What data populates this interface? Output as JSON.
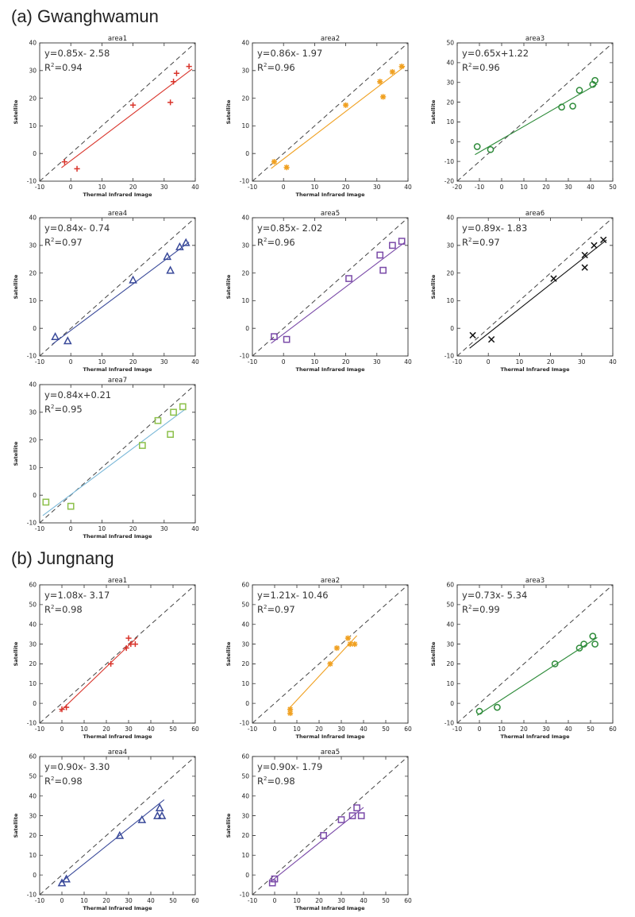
{
  "sections": [
    {
      "title": "(a) Gwanghwamun"
    },
    {
      "title": "(b) Jungnang"
    }
  ],
  "chart_data": [
    {
      "type": "scatter",
      "title": "area1",
      "xlabel": "Thermal Infrared Image",
      "ylabel": "Satellite",
      "xlim": [
        -10,
        40
      ],
      "ylim": [
        -10,
        40
      ],
      "xticks": [
        -10,
        0,
        10,
        20,
        30,
        40
      ],
      "yticks": [
        -10,
        0,
        10,
        20,
        30,
        40
      ],
      "tick_labels": {
        "x": [
          "-10",
          "0",
          "10",
          "20",
          "30",
          "40"
        ],
        "y": [
          "-10",
          "0",
          "10",
          "20",
          "30",
          "40"
        ]
      },
      "equation": "y=0.85x- 2.58",
      "r2_label": "R",
      "r2_value": "=0.94",
      "marker": "plus",
      "color": "#d9342b",
      "points": [
        [
          -2,
          -3
        ],
        [
          2,
          -5.5
        ],
        [
          20,
          17.5
        ],
        [
          32,
          18.5
        ],
        [
          33,
          26
        ],
        [
          34,
          29
        ],
        [
          38,
          31.5
        ]
      ],
      "fit": {
        "slope": 0.85,
        "intercept": -2.58
      }
    },
    {
      "type": "scatter",
      "title": "area2",
      "xlabel": "Thermal Infrared Image",
      "ylabel": "Satellite",
      "xlim": [
        -10,
        40
      ],
      "ylim": [
        -10,
        40
      ],
      "xticks": [
        -10,
        0,
        10,
        20,
        30,
        40
      ],
      "yticks": [
        -10,
        0,
        10,
        20,
        30,
        40
      ],
      "tick_labels": {
        "x": [
          "-10",
          "0",
          "10",
          "20",
          "30",
          "40"
        ],
        "y": [
          "-10",
          "0",
          "10",
          "20",
          "30",
          "40"
        ]
      },
      "equation": "y=0.86x- 1.97",
      "r2_label": "R",
      "r2_value": "=0.96",
      "marker": "asterisk",
      "color": "#f0a020",
      "points": [
        [
          -3,
          -3
        ],
        [
          1,
          -5
        ],
        [
          20,
          17.5
        ],
        [
          31,
          26
        ],
        [
          32,
          20.5
        ],
        [
          35,
          29.5
        ],
        [
          38,
          31.5
        ]
      ],
      "fit": {
        "slope": 0.86,
        "intercept": -1.97
      }
    },
    {
      "type": "scatter",
      "title": "area3",
      "xlabel": "",
      "ylabel": "Satellite",
      "xlim": [
        -20,
        50
      ],
      "ylim": [
        -20,
        50
      ],
      "xticks": [
        -20,
        -10,
        0,
        10,
        20,
        30,
        40,
        50
      ],
      "yticks": [
        -20,
        -10,
        0,
        10,
        20,
        30,
        40,
        50
      ],
      "tick_labels": {
        "x": [
          "-20",
          "-10",
          "0",
          "10",
          "20",
          "30",
          "40",
          "50"
        ],
        "y": [
          "-20",
          "-10",
          "0",
          "10",
          "20",
          "30",
          "40",
          "50"
        ]
      },
      "equation": "y=0.65x+1.22",
      "r2_label": "R",
      "r2_value": "=0.96",
      "marker": "circle",
      "color": "#2e8b3a",
      "points": [
        [
          -11,
          -2.5
        ],
        [
          -5,
          -4
        ],
        [
          27,
          17.5
        ],
        [
          32,
          18
        ],
        [
          35,
          26
        ],
        [
          41,
          29
        ],
        [
          42,
          31
        ]
      ],
      "fit": {
        "slope": 0.65,
        "intercept": 1.22
      }
    },
    {
      "type": "scatter",
      "title": "area4",
      "xlabel": "Thermal Infrared Image",
      "ylabel": "Satellite",
      "xlim": [
        -10,
        40
      ],
      "ylim": [
        -10,
        40
      ],
      "xticks": [
        -10,
        0,
        10,
        20,
        30,
        40
      ],
      "yticks": [
        -10,
        0,
        10,
        20,
        30,
        40
      ],
      "tick_labels": {
        "x": [
          "-10",
          "0",
          "10",
          "20",
          "30",
          "40"
        ],
        "y": [
          "-10",
          "0",
          "10",
          "20",
          "30",
          "40"
        ]
      },
      "equation": "y=0.84x- 0.74",
      "r2_label": "R",
      "r2_value": "=0.97",
      "marker": "triangle",
      "color": "#3a4a9a",
      "points": [
        [
          -5,
          -3
        ],
        [
          -1,
          -4.5
        ],
        [
          20,
          17.5
        ],
        [
          31,
          26
        ],
        [
          32,
          21
        ],
        [
          35,
          29.5
        ],
        [
          37,
          31
        ]
      ],
      "fit": {
        "slope": 0.84,
        "intercept": -0.74
      }
    },
    {
      "type": "scatter",
      "title": "area5",
      "xlabel": "Thermal Infrared Image",
      "ylabel": "Satellite",
      "xlim": [
        -10,
        40
      ],
      "ylim": [
        -10,
        40
      ],
      "xticks": [
        -10,
        0,
        10,
        20,
        30,
        40
      ],
      "yticks": [
        -10,
        0,
        10,
        20,
        30,
        40
      ],
      "tick_labels": {
        "x": [
          "-10",
          "0",
          "10",
          "20",
          "30",
          "40"
        ],
        "y": [
          "-10",
          "0",
          "10",
          "20",
          "30",
          "40"
        ]
      },
      "equation": "y=0.85x- 2.02",
      "r2_label": "R",
      "r2_value": "=0.96",
      "marker": "square",
      "color": "#7a4aa8",
      "points": [
        [
          -3,
          -3
        ],
        [
          1,
          -4
        ],
        [
          21,
          18
        ],
        [
          31,
          26.5
        ],
        [
          32,
          21
        ],
        [
          35,
          30
        ],
        [
          38,
          31.5
        ]
      ],
      "fit": {
        "slope": 0.85,
        "intercept": -2.02
      }
    },
    {
      "type": "scatter",
      "title": "area6",
      "xlabel": "Thermal Infrared Image",
      "ylabel": "Satellite",
      "xlim": [
        -10,
        40
      ],
      "ylim": [
        -10,
        40
      ],
      "xticks": [
        -10,
        0,
        10,
        20,
        30,
        40
      ],
      "yticks": [
        -10,
        0,
        10,
        20,
        30,
        40
      ],
      "tick_labels": {
        "x": [
          "-10",
          "0",
          "10",
          "20",
          "30",
          "40"
        ],
        "y": [
          "-10",
          "0",
          "10",
          "20",
          "30",
          "40"
        ]
      },
      "equation": "y=0.89x- 1.83",
      "r2_label": "R",
      "r2_value": "=0.97",
      "marker": "cross",
      "color": "#111111",
      "points": [
        [
          -5,
          -2.5
        ],
        [
          1,
          -4
        ],
        [
          21,
          18
        ],
        [
          31,
          26.5
        ],
        [
          31,
          22
        ],
        [
          34,
          30
        ],
        [
          37,
          32
        ]
      ],
      "fit": {
        "slope": 0.89,
        "intercept": -1.83
      }
    },
    {
      "type": "scatter",
      "title": "area7",
      "xlabel": "Thermal Infrared Image",
      "ylabel": "Satellite",
      "xlim": [
        -10,
        40
      ],
      "ylim": [
        -10,
        40
      ],
      "xticks": [
        -10,
        0,
        10,
        20,
        30,
        40
      ],
      "yticks": [
        -10,
        0,
        10,
        20,
        30,
        40
      ],
      "tick_labels": {
        "x": [
          "-10",
          "0",
          "10",
          "20",
          "30",
          "40"
        ],
        "y": [
          "-10",
          "0",
          "10",
          "20",
          "30",
          "40"
        ]
      },
      "equation": "y=0.84x+0.21",
      "r2_label": "R",
      "r2_value": "=0.95",
      "marker": "square",
      "color": "#8cc04a",
      "line_color": "#7ab8d8",
      "points": [
        [
          -8,
          -2.5
        ],
        [
          0,
          -4
        ],
        [
          23,
          18
        ],
        [
          28,
          27
        ],
        [
          32,
          22
        ],
        [
          33,
          30
        ],
        [
          36,
          32
        ]
      ],
      "fit": {
        "slope": 0.84,
        "intercept": 0.21
      }
    },
    {
      "type": "scatter",
      "title": "area1",
      "xlabel": "Thermal Infrared Image",
      "ylabel": "Satellite",
      "xlim": [
        -10,
        60
      ],
      "ylim": [
        -10,
        60
      ],
      "xticks": [
        -10,
        0,
        10,
        20,
        30,
        40,
        50,
        60
      ],
      "yticks": [
        -10,
        0,
        10,
        20,
        30,
        40,
        50,
        60
      ],
      "tick_labels": {
        "x": [
          "-10",
          "0",
          "10",
          "20",
          "30",
          "40",
          "50",
          "60"
        ],
        "y": [
          "-10",
          "0",
          "10",
          "20",
          "30",
          "40",
          "50",
          "60"
        ]
      },
      "equation": "y=1.08x- 3.17",
      "r2_label": "R",
      "r2_value": "=0.98",
      "marker": "plus",
      "color": "#d9342b",
      "points": [
        [
          0,
          -3
        ],
        [
          2,
          -2
        ],
        [
          22,
          20
        ],
        [
          29,
          28
        ],
        [
          30,
          33
        ],
        [
          31,
          30
        ],
        [
          33,
          30
        ]
      ],
      "fit": {
        "slope": 1.08,
        "intercept": -3.17
      }
    },
    {
      "type": "scatter",
      "title": "area2",
      "xlabel": "Thermal Infrared Image",
      "ylabel": "Satellite",
      "xlim": [
        -10,
        60
      ],
      "ylim": [
        -10,
        60
      ],
      "xticks": [
        -10,
        0,
        10,
        20,
        30,
        40,
        50,
        60
      ],
      "yticks": [
        -10,
        0,
        10,
        20,
        30,
        40,
        50,
        60
      ],
      "tick_labels": {
        "x": [
          "-10",
          "0",
          "10",
          "20",
          "30",
          "40",
          "50",
          "60"
        ],
        "y": [
          "-10",
          "0",
          "10",
          "20",
          "30",
          "40",
          "50",
          "60"
        ]
      },
      "equation": "y=1.21x- 10.46",
      "r2_label": "R",
      "r2_value": "=0.97",
      "marker": "asterisk",
      "color": "#f0a020",
      "points": [
        [
          7,
          -3
        ],
        [
          7,
          -5
        ],
        [
          25,
          20
        ],
        [
          28,
          28
        ],
        [
          33,
          33
        ],
        [
          34,
          30
        ],
        [
          36,
          30
        ]
      ],
      "fit": {
        "slope": 1.21,
        "intercept": -10.46
      }
    },
    {
      "type": "scatter",
      "title": "area3",
      "xlabel": "Thermal Infrared Image",
      "ylabel": "Satellite",
      "xlim": [
        -10,
        60
      ],
      "ylim": [
        -10,
        60
      ],
      "xticks": [
        -10,
        0,
        10,
        20,
        30,
        40,
        50,
        60
      ],
      "yticks": [
        -10,
        0,
        10,
        20,
        30,
        40,
        50,
        60
      ],
      "tick_labels": {
        "x": [
          "-10",
          "0",
          "10",
          "20",
          "30",
          "40",
          "50",
          "60"
        ],
        "y": [
          "-10",
          "0",
          "10",
          "20",
          "30",
          "40",
          "50",
          "60"
        ]
      },
      "equation": "y=0.73x- 5.34",
      "r2_label": "R",
      "r2_value": "=0.99",
      "marker": "circle",
      "color": "#2e8b3a",
      "points": [
        [
          0,
          -4
        ],
        [
          8,
          -2
        ],
        [
          34,
          20
        ],
        [
          45,
          28
        ],
        [
          47,
          30
        ],
        [
          51,
          34
        ],
        [
          52,
          30
        ]
      ],
      "fit": {
        "slope": 0.73,
        "intercept": -5.34
      }
    },
    {
      "type": "scatter",
      "title": "area4",
      "xlabel": "Thermal Infrared Image",
      "ylabel": "Satellite",
      "xlim": [
        -10,
        60
      ],
      "ylim": [
        -10,
        60
      ],
      "xticks": [
        -10,
        0,
        10,
        20,
        30,
        40,
        50,
        60
      ],
      "yticks": [
        -10,
        0,
        10,
        20,
        30,
        40,
        50,
        60
      ],
      "tick_labels": {
        "x": [
          "-10",
          "0",
          "10",
          "20",
          "30",
          "40",
          "50",
          "60"
        ],
        "y": [
          "-10",
          "0",
          "10",
          "20",
          "30",
          "40",
          "50",
          "60"
        ]
      },
      "equation": "y=0.90x- 3.30",
      "r2_label": "R",
      "r2_value": "=0.98",
      "marker": "triangle",
      "color": "#3a4a9a",
      "points": [
        [
          0,
          -4
        ],
        [
          2,
          -2
        ],
        [
          26,
          20
        ],
        [
          36,
          28
        ],
        [
          43,
          30
        ],
        [
          44,
          34
        ],
        [
          45,
          30
        ]
      ],
      "fit": {
        "slope": 0.9,
        "intercept": -3.3
      }
    },
    {
      "type": "scatter",
      "title": "area5",
      "xlabel": "Thermal Infrared Image",
      "ylabel": "Satellite",
      "xlim": [
        -10,
        60
      ],
      "ylim": [
        -10,
        60
      ],
      "xticks": [
        -10,
        0,
        10,
        20,
        30,
        40,
        50,
        60
      ],
      "yticks": [
        -10,
        0,
        10,
        20,
        30,
        40,
        50,
        60
      ],
      "tick_labels": {
        "x": [
          "-10",
          "0",
          "10",
          "20",
          "30",
          "40",
          "50",
          "60"
        ],
        "y": [
          "-10",
          "0",
          "10",
          "20",
          "30",
          "40",
          "50",
          "60"
        ]
      },
      "equation": "y=0.90x- 1.79",
      "r2_label": "R",
      "r2_value": "=0.98",
      "marker": "square",
      "color": "#7a4aa8",
      "points": [
        [
          -1,
          -4
        ],
        [
          0,
          -2
        ],
        [
          22,
          20
        ],
        [
          30,
          28
        ],
        [
          35,
          30
        ],
        [
          37,
          34
        ],
        [
          39,
          30
        ]
      ],
      "fit": {
        "slope": 0.9,
        "intercept": -1.79
      }
    }
  ]
}
